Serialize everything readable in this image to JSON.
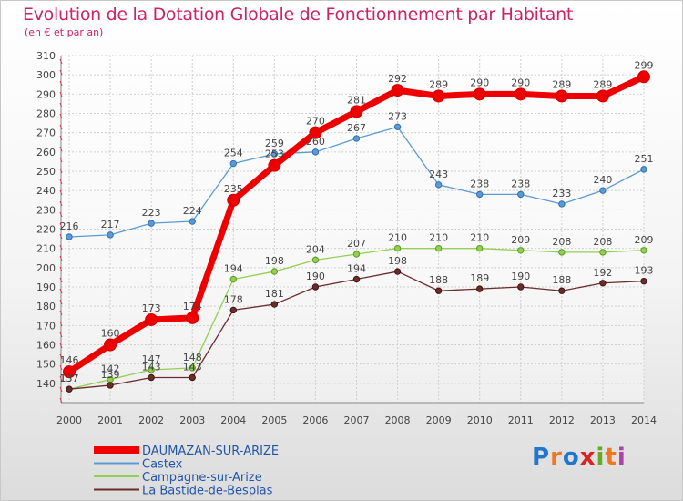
{
  "header": {
    "title": "Evolution de la Dotation Globale de Fonctionnement par Habitant",
    "subtitle": "(en € et par an)"
  },
  "logo": {
    "text": "Proxiti"
  },
  "chart_data": {
    "type": "line",
    "x": [
      "2000",
      "2001",
      "2002",
      "2003",
      "2004",
      "2005",
      "2006",
      "2007",
      "2008",
      "2009",
      "2010",
      "2011",
      "2012",
      "2013",
      "2014"
    ],
    "ylim": [
      130,
      310
    ],
    "yticks": [
      140,
      150,
      160,
      170,
      180,
      190,
      200,
      210,
      220,
      230,
      240,
      250,
      260,
      270,
      280,
      290,
      300,
      310
    ],
    "grid": true,
    "legend_position": "bottom-left",
    "series": [
      {
        "name": "Castex",
        "color": "#5b9bd5",
        "values": [
          216,
          217,
          223,
          224,
          254,
          259,
          260,
          267,
          273,
          243,
          238,
          238,
          233,
          240,
          251
        ]
      },
      {
        "name": "Campagne-sur-Arize",
        "color": "#92d050",
        "values": [
          137,
          142,
          147,
          148,
          194,
          198,
          204,
          207,
          210,
          210,
          210,
          209,
          208,
          208,
          209
        ]
      },
      {
        "name": "La Bastide-de-Besplas",
        "color": "#6b2c2c",
        "values": [
          137,
          139,
          143,
          143,
          178,
          181,
          190,
          194,
          198,
          188,
          189,
          190,
          188,
          192,
          193
        ]
      },
      {
        "name": "DAUMAZAN-SUR-ARIZE",
        "color": "#ee0000",
        "values": [
          146,
          160,
          173,
          174,
          235,
          253,
          270,
          281,
          292,
          289,
          290,
          290,
          289,
          289,
          299
        ]
      }
    ],
    "legend_order": [
      "DAUMAZAN-SUR-ARIZE",
      "Castex",
      "Campagne-sur-Arize",
      "La Bastide-de-Besplas"
    ]
  }
}
